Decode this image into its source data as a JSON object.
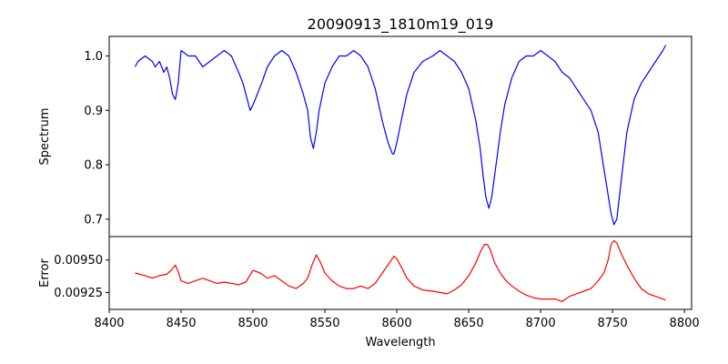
{
  "chart_data": [
    {
      "type": "line",
      "panel": "top",
      "title": "20090913_1810m19_019",
      "xlabel": "",
      "ylabel": "Spectrum",
      "xlim": [
        8400,
        8805
      ],
      "ylim": [
        0.668,
        1.036
      ],
      "yticks": [
        0.7,
        0.8,
        0.9,
        1.0
      ],
      "ytick_labels": [
        "0.7",
        "0.8",
        "0.9",
        "1.0"
      ],
      "grid": false,
      "series": [
        {
          "color": "#0000ff",
          "x": [
            8418,
            8420,
            8425,
            8430,
            8432,
            8435,
            8438,
            8440,
            8442,
            8444,
            8446,
            8448,
            8450,
            8455,
            8460,
            8465,
            8470,
            8475,
            8480,
            8485,
            8490,
            8493,
            8496,
            8498,
            8500,
            8503,
            8506,
            8510,
            8515,
            8520,
            8525,
            8530,
            8535,
            8538,
            8540,
            8542,
            8544,
            8546,
            8550,
            8555,
            8560,
            8565,
            8570,
            8575,
            8580,
            8585,
            8590,
            8594,
            8597,
            8598,
            8600,
            8603,
            8607,
            8612,
            8618,
            8625,
            8630,
            8635,
            8640,
            8645,
            8650,
            8655,
            8658,
            8660,
            8662,
            8664,
            8666,
            8668,
            8670,
            8672,
            8675,
            8680,
            8685,
            8690,
            8695,
            8700,
            8705,
            8710,
            8715,
            8720,
            8725,
            8730,
            8735,
            8740,
            8743,
            8746,
            8749,
            8751,
            8753,
            8756,
            8760,
            8765,
            8770,
            8775,
            8780,
            8785,
            8787
          ],
          "y": [
            0.98,
            0.99,
            1.0,
            0.99,
            0.98,
            0.99,
            0.97,
            0.98,
            0.96,
            0.93,
            0.92,
            0.95,
            1.01,
            1.0,
            1.0,
            0.98,
            0.99,
            1.0,
            1.01,
            1.0,
            0.97,
            0.95,
            0.92,
            0.9,
            0.91,
            0.93,
            0.95,
            0.98,
            1.0,
            1.01,
            1.0,
            0.97,
            0.93,
            0.9,
            0.85,
            0.83,
            0.86,
            0.9,
            0.95,
            0.98,
            1.0,
            1.0,
            1.01,
            1.0,
            0.98,
            0.94,
            0.88,
            0.84,
            0.82,
            0.82,
            0.84,
            0.88,
            0.93,
            0.97,
            0.99,
            1.0,
            1.01,
            1.0,
            0.99,
            0.97,
            0.94,
            0.88,
            0.83,
            0.78,
            0.74,
            0.72,
            0.74,
            0.78,
            0.82,
            0.86,
            0.91,
            0.96,
            0.99,
            1.0,
            1.0,
            1.01,
            1.0,
            0.99,
            0.97,
            0.96,
            0.94,
            0.92,
            0.9,
            0.86,
            0.81,
            0.76,
            0.71,
            0.69,
            0.7,
            0.77,
            0.86,
            0.92,
            0.95,
            0.97,
            0.99,
            1.01,
            1.02
          ]
        }
      ]
    },
    {
      "type": "line",
      "panel": "bottom",
      "title": "",
      "xlabel": "Wavelength",
      "ylabel": "Error",
      "xlim": [
        8400,
        8805
      ],
      "ylim": [
        0.00912,
        0.00968
      ],
      "xticks": [
        8400,
        8450,
        8500,
        8550,
        8600,
        8650,
        8700,
        8750,
        8800
      ],
      "xtick_labels": [
        "8400",
        "8450",
        "8500",
        "8550",
        "8600",
        "8650",
        "8700",
        "8750",
        "8800"
      ],
      "yticks": [
        0.00925,
        0.0095
      ],
      "ytick_labels": [
        "0.00925",
        "0.00950"
      ],
      "grid": false,
      "series": [
        {
          "color": "#ff0000",
          "x": [
            8418,
            8425,
            8430,
            8435,
            8440,
            8443,
            8446,
            8448,
            8450,
            8455,
            8460,
            8465,
            8470,
            8475,
            8480,
            8485,
            8490,
            8495,
            8500,
            8505,
            8510,
            8515,
            8520,
            8525,
            8530,
            8535,
            8538,
            8541,
            8544,
            8547,
            8550,
            8555,
            8560,
            8565,
            8570,
            8575,
            8580,
            8585,
            8590,
            8595,
            8598,
            8600,
            8603,
            8607,
            8612,
            8618,
            8625,
            8630,
            8635,
            8640,
            8645,
            8650,
            8655,
            8658,
            8661,
            8663,
            8665,
            8668,
            8672,
            8676,
            8680,
            8685,
            8690,
            8695,
            8700,
            8705,
            8710,
            8715,
            8720,
            8725,
            8730,
            8735,
            8740,
            8744,
            8747,
            8749,
            8751,
            8753,
            8756,
            8760,
            8765,
            8770,
            8775,
            8780,
            8785,
            8787
          ],
          "y": [
            0.0094,
            0.00938,
            0.00936,
            0.00938,
            0.00939,
            0.00942,
            0.00946,
            0.00941,
            0.00934,
            0.00932,
            0.00934,
            0.00936,
            0.00934,
            0.00932,
            0.00933,
            0.00932,
            0.00931,
            0.00933,
            0.00942,
            0.0094,
            0.00936,
            0.00938,
            0.00934,
            0.0093,
            0.00928,
            0.00932,
            0.00936,
            0.00946,
            0.00954,
            0.00948,
            0.0094,
            0.00934,
            0.0093,
            0.00928,
            0.00928,
            0.0093,
            0.00928,
            0.00932,
            0.0094,
            0.00948,
            0.00953,
            0.00951,
            0.00945,
            0.00936,
            0.0093,
            0.00927,
            0.00926,
            0.00925,
            0.00924,
            0.00927,
            0.00931,
            0.00938,
            0.00948,
            0.00956,
            0.00962,
            0.00962,
            0.00958,
            0.00948,
            0.0094,
            0.00934,
            0.0093,
            0.00926,
            0.00923,
            0.00921,
            0.0092,
            0.0092,
            0.0092,
            0.00918,
            0.00922,
            0.00924,
            0.00926,
            0.00928,
            0.00934,
            0.0094,
            0.0095,
            0.00962,
            0.00965,
            0.00963,
            0.00955,
            0.00946,
            0.00936,
            0.00928,
            0.00924,
            0.00922,
            0.0092,
            0.00919
          ]
        }
      ]
    }
  ]
}
